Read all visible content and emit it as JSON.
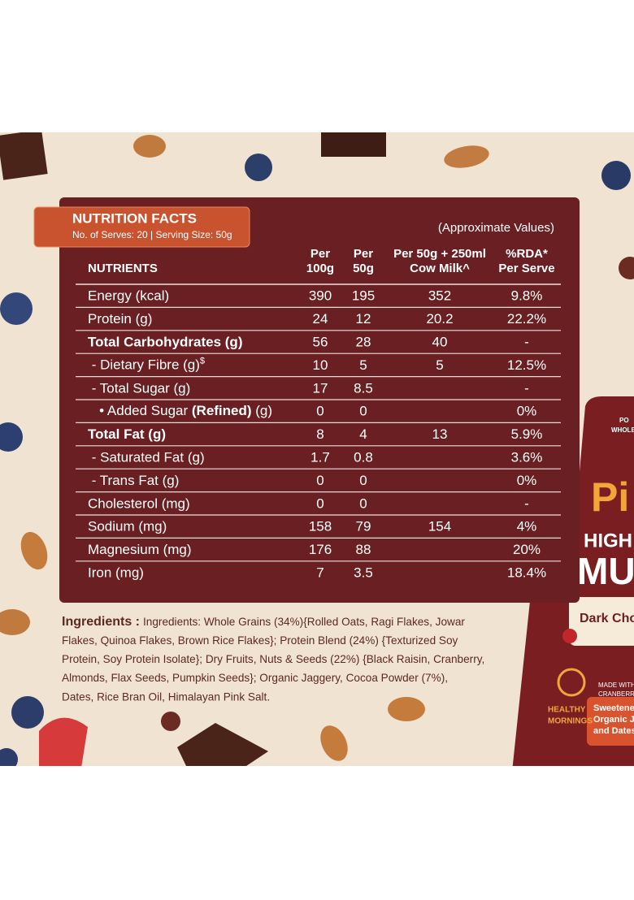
{
  "panel": {
    "title": "NUTRITION FACTS",
    "subtitle": "No. of Serves: 20 | Serving Size: 50g",
    "note": "(Approximate Values)",
    "columns": [
      [
        "NUTRIENTS"
      ],
      [
        "Per",
        "100g"
      ],
      [
        "Per",
        "50g"
      ],
      [
        "Per 50g + 250ml",
        "Cow Milk^"
      ],
      [
        "%RDA*",
        "Per Serve"
      ]
    ],
    "rows": [
      {
        "label": "Energy (kcal)",
        "values": [
          "390",
          "195",
          "352",
          "9.8%"
        ]
      },
      {
        "label": "Protein (g)",
        "values": [
          "24",
          "12",
          "20.2",
          "22.2%"
        ]
      },
      {
        "label": "Total Carbohydrates (g)",
        "bold": true,
        "values": [
          "56",
          "28",
          "40",
          "-"
        ]
      },
      {
        "label": [
          {
            "text": " - Dietary Fibre (g)"
          },
          {
            "text": "$",
            "sup": true
          }
        ],
        "values": [
          "10",
          "5",
          "5",
          "12.5%"
        ]
      },
      {
        "label": " - Total Sugar (g)",
        "values": [
          "17",
          "8.5",
          null,
          "-"
        ]
      },
      {
        "label": [
          {
            "text": "   • Added Sugar "
          },
          {
            "text": "(Refined)",
            "bold": true
          },
          {
            "text": " (g)"
          }
        ],
        "values": [
          "0",
          "0",
          null,
          "0%"
        ]
      },
      {
        "label": "Total Fat (g)",
        "bold": true,
        "values": [
          "8",
          "4",
          "13",
          "5.9%"
        ]
      },
      {
        "label": " - Saturated Fat (g)",
        "values": [
          "1.7",
          "0.8",
          null,
          "3.6%"
        ]
      },
      {
        "label": " - Trans Fat (g)",
        "values": [
          "0",
          "0",
          null,
          "0%"
        ]
      },
      {
        "label": "Cholesterol (mg)",
        "values": [
          "0",
          "0",
          null,
          "-"
        ]
      },
      {
        "label": "Sodium (mg)",
        "values": [
          "158",
          "79",
          "154",
          "4%"
        ]
      },
      {
        "label": "Magnesium (mg)",
        "values": [
          "176",
          "88",
          null,
          "20%"
        ]
      },
      {
        "label": "Iron (mg)",
        "values": [
          "7",
          "3.5",
          null,
          "18.4%"
        ]
      }
    ]
  },
  "ingredients": {
    "heading": "Ingredients :",
    "lines": [
      "Ingredients: Whole Grains (34%){Rolled Oats, Ragi Flakes, Jowar",
      "Flakes, Quinoa Flakes, Brown Rice Flakes}; Protein Blend (24%) {Texturized Soy",
      "Protein, Soy Protein Isolate}; Dry Fruits, Nuts & Seeds (22%) {Black Raisin, Cranberry,",
      "Almonds, Flax Seeds, Pumpkin Seeds}; Organic Jaggery, Cocoa Powder (7%),",
      "Dates, Rice Bran Oil, Himalayan Pink Salt."
    ]
  },
  "pouch": {
    "brand": "Pi",
    "line1": "HIGH",
    "line2": "MU",
    "flavour": "Dark Cho",
    "tag": [
      "HEALTHY",
      "MORNINGS"
    ],
    "made_with": [
      "MADE WITH",
      "CRANBERRIE"
    ],
    "sweetened": [
      "Sweetened",
      "Organic Jac",
      "and Dates"
    ],
    "top": [
      "PO",
      "WHOLE"
    ]
  }
}
